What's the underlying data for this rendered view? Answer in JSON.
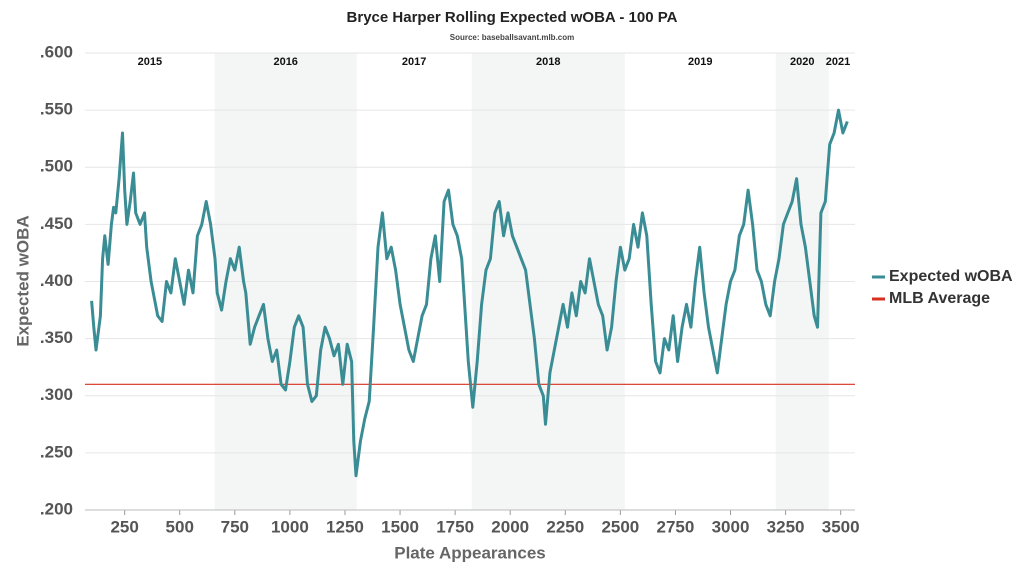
{
  "chart_data": {
    "type": "line",
    "title": "Bryce Harper Rolling Expected wOBA - 100 PA",
    "subtitle": "Source: baseballsavant.mlb.com",
    "x_label": "Plate Appearances",
    "y_label": "Expected wOBA",
    "xlim": [
      70,
      3565
    ],
    "ylim": [
      0.2,
      0.6
    ],
    "xticks": [
      250,
      500,
      750,
      1000,
      1250,
      1500,
      1750,
      2000,
      2250,
      2500,
      2750,
      3000,
      3250,
      3500
    ],
    "yticks": [
      {
        "value": 0.2,
        "label": ".200"
      },
      {
        "value": 0.25,
        "label": ".250"
      },
      {
        "value": 0.3,
        "label": ".300"
      },
      {
        "value": 0.35,
        "label": ".350"
      },
      {
        "value": 0.4,
        "label": ".400"
      },
      {
        "value": 0.45,
        "label": ".450"
      },
      {
        "value": 0.5,
        "label": ".500"
      },
      {
        "value": 0.55,
        "label": ".550"
      },
      {
        "value": 0.6,
        "label": ".600"
      }
    ],
    "grid": true,
    "legend": "right",
    "seasons": [
      {
        "label": "2015",
        "start": 0,
        "end": 659,
        "shaded": false
      },
      {
        "label": "2016",
        "start": 659,
        "end": 1303,
        "shaded": true
      },
      {
        "label": "2017",
        "start": 1303,
        "end": 1825,
        "shaded": false
      },
      {
        "label": "2018",
        "start": 1825,
        "end": 2520,
        "shaded": true
      },
      {
        "label": "2019",
        "start": 2520,
        "end": 3205,
        "shaded": false
      },
      {
        "label": "2020",
        "start": 3205,
        "end": 3446,
        "shaded": true
      },
      {
        "label": "2021",
        "start": 3446,
        "end": 3530,
        "shaded": false
      }
    ],
    "x": [
      100,
      110,
      120,
      140,
      150,
      160,
      175,
      190,
      200,
      210,
      225,
      240,
      250,
      260,
      275,
      290,
      300,
      320,
      340,
      350,
      370,
      390,
      400,
      420,
      440,
      460,
      480,
      500,
      520,
      540,
      560,
      580,
      600,
      620,
      640,
      660,
      670,
      690,
      710,
      730,
      750,
      770,
      790,
      800,
      820,
      840,
      860,
      880,
      900,
      920,
      940,
      960,
      980,
      1000,
      1020,
      1040,
      1060,
      1080,
      1100,
      1120,
      1140,
      1160,
      1180,
      1200,
      1220,
      1240,
      1260,
      1280,
      1290,
      1300,
      1320,
      1340,
      1360,
      1380,
      1400,
      1420,
      1440,
      1460,
      1480,
      1500,
      1520,
      1540,
      1560,
      1580,
      1600,
      1620,
      1640,
      1660,
      1680,
      1700,
      1720,
      1740,
      1760,
      1780,
      1800,
      1810,
      1830,
      1850,
      1870,
      1890,
      1910,
      1930,
      1950,
      1970,
      1990,
      2010,
      2030,
      2050,
      2070,
      2090,
      2110,
      2130,
      2150,
      2160,
      2180,
      2200,
      2220,
      2240,
      2260,
      2280,
      2300,
      2320,
      2340,
      2360,
      2380,
      2400,
      2420,
      2440,
      2460,
      2480,
      2500,
      2520,
      2540,
      2560,
      2580,
      2600,
      2620,
      2640,
      2660,
      2680,
      2700,
      2720,
      2740,
      2760,
      2780,
      2800,
      2820,
      2840,
      2860,
      2880,
      2900,
      2920,
      2940,
      2960,
      2980,
      3000,
      3020,
      3040,
      3060,
      3080,
      3100,
      3120,
      3140,
      3160,
      3180,
      3200,
      3220,
      3240,
      3260,
      3280,
      3300,
      3320,
      3340,
      3360,
      3380,
      3395,
      3410,
      3430,
      3450,
      3470,
      3490,
      3510,
      3530
    ],
    "series": [
      {
        "name": "Expected wOBA",
        "color": "#3b8d95",
        "values": [
          0.383,
          0.36,
          0.34,
          0.37,
          0.42,
          0.44,
          0.415,
          0.45,
          0.465,
          0.46,
          0.49,
          0.53,
          0.48,
          0.45,
          0.47,
          0.495,
          0.46,
          0.45,
          0.46,
          0.43,
          0.4,
          0.38,
          0.37,
          0.365,
          0.4,
          0.39,
          0.42,
          0.4,
          0.38,
          0.41,
          0.39,
          0.44,
          0.45,
          0.47,
          0.45,
          0.42,
          0.39,
          0.375,
          0.4,
          0.42,
          0.41,
          0.43,
          0.4,
          0.39,
          0.345,
          0.36,
          0.37,
          0.38,
          0.35,
          0.33,
          0.34,
          0.31,
          0.305,
          0.33,
          0.36,
          0.37,
          0.36,
          0.31,
          0.295,
          0.3,
          0.34,
          0.36,
          0.35,
          0.335,
          0.345,
          0.31,
          0.345,
          0.33,
          0.26,
          0.23,
          0.26,
          0.28,
          0.295,
          0.36,
          0.43,
          0.46,
          0.42,
          0.43,
          0.41,
          0.38,
          0.36,
          0.34,
          0.33,
          0.35,
          0.37,
          0.38,
          0.42,
          0.44,
          0.4,
          0.47,
          0.48,
          0.45,
          0.44,
          0.42,
          0.36,
          0.33,
          0.29,
          0.33,
          0.38,
          0.41,
          0.42,
          0.46,
          0.47,
          0.44,
          0.46,
          0.44,
          0.43,
          0.42,
          0.41,
          0.38,
          0.35,
          0.31,
          0.3,
          0.275,
          0.32,
          0.34,
          0.36,
          0.38,
          0.36,
          0.39,
          0.37,
          0.4,
          0.39,
          0.42,
          0.4,
          0.38,
          0.37,
          0.34,
          0.36,
          0.4,
          0.43,
          0.41,
          0.42,
          0.45,
          0.43,
          0.46,
          0.44,
          0.38,
          0.33,
          0.32,
          0.35,
          0.34,
          0.37,
          0.33,
          0.36,
          0.38,
          0.36,
          0.4,
          0.43,
          0.39,
          0.36,
          0.34,
          0.32,
          0.35,
          0.38,
          0.4,
          0.41,
          0.44,
          0.45,
          0.48,
          0.45,
          0.41,
          0.4,
          0.38,
          0.37,
          0.4,
          0.42,
          0.45,
          0.46,
          0.47,
          0.49,
          0.45,
          0.43,
          0.4,
          0.37,
          0.36,
          0.46,
          0.47,
          0.52,
          0.53,
          0.55,
          0.53,
          0.54
        ]
      }
    ],
    "hlines": [
      {
        "name": "MLB Average",
        "value": 0.31,
        "color": "#d7301f"
      }
    ]
  }
}
